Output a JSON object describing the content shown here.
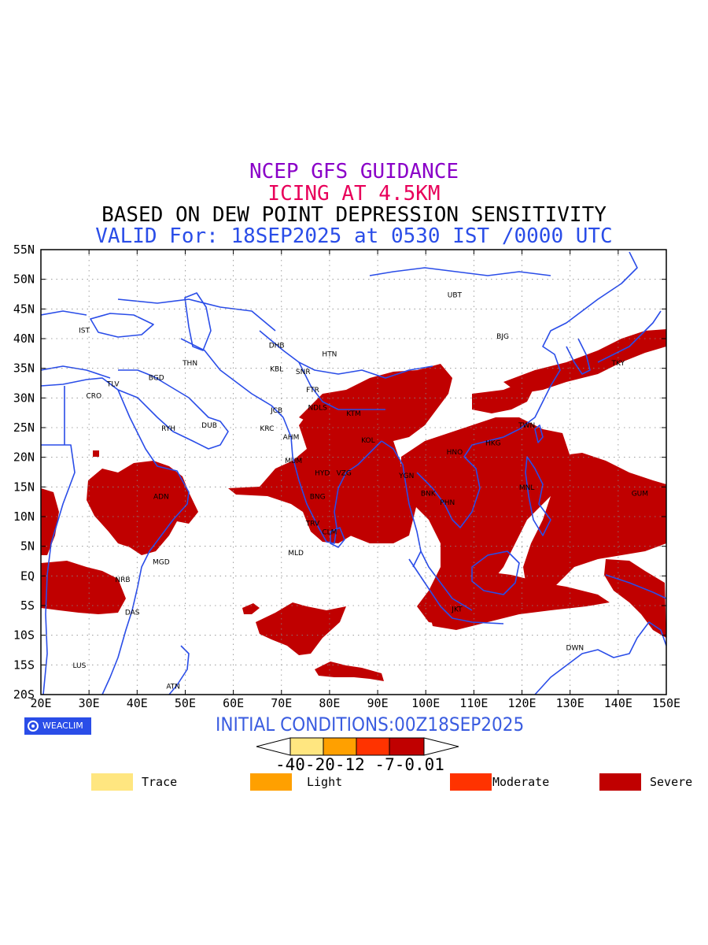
{
  "titles": {
    "line1": "NCEP GFS GUIDANCE",
    "line2": "ICING AT 4.5KM",
    "line3": "BASED ON DEW POINT DEPRESSION SENSITIVITY",
    "line4": "VALID For: 18SEP2025 at 0530 IST /0000 UTC"
  },
  "colors": {
    "title1": "#8a00c8",
    "title2": "#e8005a",
    "title3": "#000000",
    "title4": "#2a4de8",
    "coast": "#2a4de8",
    "severe": "#c00000",
    "moderate": "#ff3300",
    "light": "#ffa000",
    "trace": "#ffe680",
    "badge_bg": "#2a4de8",
    "initcond": "#3a5ce0"
  },
  "axes": {
    "lon_labels": [
      "20E",
      "30E",
      "40E",
      "50E",
      "60E",
      "70E",
      "80E",
      "90E",
      "100E",
      "110E",
      "120E",
      "130E",
      "140E",
      "150E"
    ],
    "lat_labels": [
      "55N",
      "50N",
      "45N",
      "40N",
      "35N",
      "30N",
      "25N",
      "20N",
      "15N",
      "10N",
      "5N",
      "EQ",
      "5S",
      "10S",
      "15S",
      "20S"
    ],
    "lon_range": [
      20,
      150
    ],
    "lat_range": [
      -20,
      55
    ],
    "grid": "dotted"
  },
  "cities": [
    {
      "name": "UBT",
      "lon": 106,
      "lat": 47
    },
    {
      "name": "BJG",
      "lon": 116,
      "lat": 40
    },
    {
      "name": "TKY",
      "lon": 140,
      "lat": 35.5
    },
    {
      "name": "DHB",
      "lon": 69,
      "lat": 38.5
    },
    {
      "name": "HTN",
      "lon": 80,
      "lat": 37
    },
    {
      "name": "KBL",
      "lon": 69,
      "lat": 34.5
    },
    {
      "name": "SNR",
      "lon": 74.5,
      "lat": 34
    },
    {
      "name": "THN",
      "lon": 51,
      "lat": 35.5
    },
    {
      "name": "IST",
      "lon": 29,
      "lat": 41
    },
    {
      "name": "BGD",
      "lon": 44,
      "lat": 33
    },
    {
      "name": "TLV",
      "lon": 35,
      "lat": 32
    },
    {
      "name": "CRO",
      "lon": 31,
      "lat": 30
    },
    {
      "name": "FTR",
      "lon": 76.5,
      "lat": 31
    },
    {
      "name": "JCB",
      "lon": 69,
      "lat": 27.5
    },
    {
      "name": "NDLS",
      "lon": 77.5,
      "lat": 28
    },
    {
      "name": "KTM",
      "lon": 85,
      "lat": 27
    },
    {
      "name": "RYH",
      "lon": 46.5,
      "lat": 24.5
    },
    {
      "name": "DUB",
      "lon": 55,
      "lat": 25
    },
    {
      "name": "KRC",
      "lon": 67,
      "lat": 24.5
    },
    {
      "name": "AHM",
      "lon": 72,
      "lat": 23
    },
    {
      "name": "KOL",
      "lon": 88,
      "lat": 22.5
    },
    {
      "name": "TWN",
      "lon": 121,
      "lat": 25
    },
    {
      "name": "HKG",
      "lon": 114,
      "lat": 22
    },
    {
      "name": "HNO",
      "lon": 106,
      "lat": 20.5
    },
    {
      "name": "MUM",
      "lon": 72.5,
      "lat": 19
    },
    {
      "name": "HYD",
      "lon": 78.5,
      "lat": 17
    },
    {
      "name": "VZG",
      "lon": 83,
      "lat": 17
    },
    {
      "name": "YGN",
      "lon": 96,
      "lat": 16.5
    },
    {
      "name": "BNK",
      "lon": 100.5,
      "lat": 13.5
    },
    {
      "name": "PHN",
      "lon": 104.5,
      "lat": 12
    },
    {
      "name": "MNL",
      "lon": 121,
      "lat": 14.5
    },
    {
      "name": "GUM",
      "lon": 144.5,
      "lat": 13.5
    },
    {
      "name": "BNG",
      "lon": 77.5,
      "lat": 13
    },
    {
      "name": "ADN",
      "lon": 45,
      "lat": 13
    },
    {
      "name": "TRV",
      "lon": 76.5,
      "lat": 8.5
    },
    {
      "name": "CLM",
      "lon": 80,
      "lat": 7
    },
    {
      "name": "MLD",
      "lon": 73,
      "lat": 3.5
    },
    {
      "name": "MGD",
      "lon": 45,
      "lat": 2
    },
    {
      "name": "NRB",
      "lon": 37,
      "lat": -1
    },
    {
      "name": "DAS",
      "lon": 39,
      "lat": -6.5
    },
    {
      "name": "JKT",
      "lon": 106.5,
      "lat": -6
    },
    {
      "name": "DWN",
      "lon": 131,
      "lat": -12.5
    },
    {
      "name": "LUS",
      "lon": 28,
      "lat": -15.5
    },
    {
      "name": "ATN",
      "lon": 47.5,
      "lat": -19
    }
  ],
  "colorbar": {
    "labels": "-40-20-12 -7-0.01",
    "boxes": [
      "trace",
      "light",
      "moderate",
      "severe"
    ]
  },
  "legend": [
    {
      "label": "Trace",
      "key": "trace"
    },
    {
      "label": "Light",
      "key": "light"
    },
    {
      "label": "Moderate",
      "key": "moderate"
    },
    {
      "label": "Severe",
      "key": "severe"
    }
  ],
  "badge": "WEACLIM",
  "initial_conditions": "INITIAL CONDITIONS:00Z18SEP2025"
}
